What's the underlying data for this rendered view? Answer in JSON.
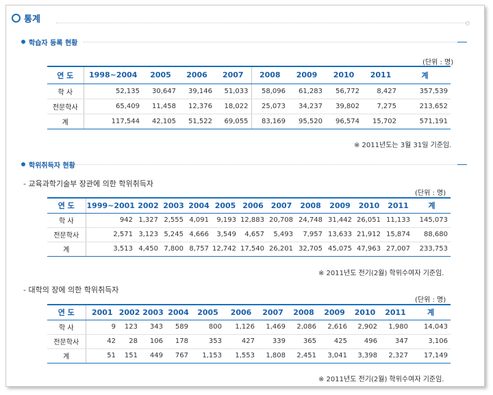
{
  "title": "통계",
  "section1": {
    "title": "학습자 등록 현황",
    "unit": "(단위 : 명)",
    "headers": [
      "연 도",
      "1998~2004",
      "2005",
      "2006",
      "2007",
      "2008",
      "2009",
      "2010",
      "2011",
      "계"
    ],
    "rows": [
      [
        "학 사",
        "52,135",
        "30,647",
        "39,146",
        "51,033",
        "58,096",
        "61,283",
        "56,772",
        "8,427",
        "357,539"
      ],
      [
        "전문학사",
        "65,409",
        "11,458",
        "12,376",
        "18,022",
        "25,073",
        "34,237",
        "39,802",
        "7,275",
        "213,652"
      ],
      [
        "계",
        "117,544",
        "42,105",
        "51,522",
        "69,055",
        "83,169",
        "95,520",
        "96,574",
        "15,702",
        "571,191"
      ]
    ],
    "note": "※ 2011년도는 3월 31일 기준임."
  },
  "section2": {
    "title": "학위취득자 현황",
    "sub1": {
      "label": "- 교육과학기술부 장관에 의한 학위취득자",
      "unit": "(단위 : 명)",
      "headers": [
        "연 도",
        "1999~2001",
        "2002",
        "2003",
        "2004",
        "2005",
        "2006",
        "2007",
        "2008",
        "2009",
        "2010",
        "2011",
        "계"
      ],
      "rows": [
        [
          "학 사",
          "942",
          "1,327",
          "2,555",
          "4,091",
          "9,193",
          "12,883",
          "20,708",
          "24,748",
          "31,442",
          "26,051",
          "11,133",
          "145,073"
        ],
        [
          "전문학사",
          "2,571",
          "3,123",
          "5,245",
          "4,666",
          "3,549",
          "4,657",
          "5,493",
          "7,957",
          "13,633",
          "21,912",
          "15,874",
          "88,680"
        ],
        [
          "계",
          "3,513",
          "4,450",
          "7,800",
          "8,757",
          "12,742",
          "17,540",
          "26,201",
          "32,705",
          "45,075",
          "47,963",
          "27,007",
          "233,753"
        ]
      ],
      "note": "※ 2011년도 전기(2월) 학위수여자 기준임."
    },
    "sub2": {
      "label": "- 대학의 장에 의한 학위취득자",
      "unit": "(단위 : 명)",
      "headers": [
        "연 도",
        "2001",
        "2002",
        "2003",
        "2004",
        "2005",
        "2006",
        "2007",
        "2008",
        "2009",
        "2010",
        "2011",
        "계"
      ],
      "rows": [
        [
          "학 사",
          "9",
          "123",
          "343",
          "589",
          "800",
          "1,126",
          "1,469",
          "2,086",
          "2,616",
          "2,902",
          "1,980",
          "14,043"
        ],
        [
          "전문학사",
          "42",
          "28",
          "106",
          "178",
          "353",
          "427",
          "339",
          "365",
          "425",
          "496",
          "347",
          "3,106"
        ],
        [
          "계",
          "51",
          "151",
          "449",
          "767",
          "1,153",
          "1,553",
          "1,808",
          "2,451",
          "3,041",
          "3,398",
          "2,327",
          "17,149"
        ]
      ],
      "note": "※ 2011년도 전기(2월) 학위수여자 기준임."
    }
  },
  "colors": {
    "accent": "#1a6fb7",
    "title": "#1a5fa8",
    "text": "#333333"
  }
}
